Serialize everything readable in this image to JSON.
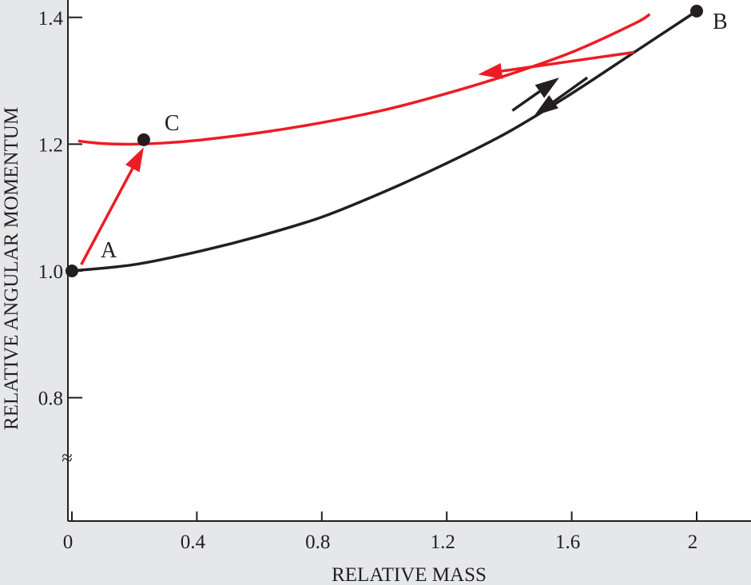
{
  "chart_data": {
    "type": "line",
    "title": "",
    "xlabel": "RELATIVE MASS",
    "ylabel": "RELATIVE ANGULAR MOMENTUM",
    "xlim": [
      0,
      2.16
    ],
    "ylim": [
      0.6,
      1.44
    ],
    "x_ticks": [
      0,
      0.4,
      0.8,
      1.2,
      1.6,
      2
    ],
    "x_tick_labels": [
      "0",
      "0.4",
      "0.8",
      "1.2",
      "1.6",
      "2"
    ],
    "y_ticks": [
      0.8,
      1.0,
      1.2,
      1.4
    ],
    "y_tick_labels": [
      "0.8",
      "1.0",
      "1.2",
      "1.4"
    ],
    "axis_break": "≈",
    "grid": false,
    "colors": {
      "black_curve": "#231f20",
      "red_curve": "#ed1c24",
      "axis": "#231f20",
      "plot_background": "#ffffff",
      "frame_background": "#e6e7e8"
    },
    "series": [
      {
        "color": "#231f20",
        "x": [
          0,
          0.2,
          0.4,
          0.6,
          0.8,
          1.0,
          1.2,
          1.4,
          1.6,
          1.8,
          2.0
        ],
        "y": [
          1.0,
          1.01,
          1.03,
          1.055,
          1.085,
          1.125,
          1.17,
          1.22,
          1.28,
          1.345,
          1.41
        ]
      },
      {
        "color": "#ed1c24",
        "x": [
          0.02,
          0.1,
          0.2,
          0.3,
          0.4,
          0.6,
          0.8,
          1.0,
          1.2,
          1.4,
          1.6,
          1.8,
          1.85
        ],
        "y": [
          1.205,
          1.201,
          1.2,
          1.202,
          1.206,
          1.218,
          1.234,
          1.254,
          1.28,
          1.31,
          1.345,
          1.39,
          1.405
        ]
      }
    ],
    "points": [
      {
        "label": "A",
        "x": 0,
        "y": 1.0
      },
      {
        "label": "B",
        "x": 2.0,
        "y": 1.41
      },
      {
        "label": "C",
        "x": 0.23,
        "y": 1.207
      }
    ],
    "arrows": [
      {
        "color": "#ed1c24",
        "from": [
          0.03,
          1.01
        ],
        "to": [
          0.23,
          1.195
        ]
      },
      {
        "color": "#ed1c24",
        "from": [
          1.8,
          1.345
        ],
        "to": [
          1.3,
          1.31
        ]
      },
      {
        "color": "#231f20",
        "from": [
          1.41,
          1.253
        ],
        "to": [
          1.56,
          1.305
        ]
      },
      {
        "color": "#231f20",
        "from": [
          1.65,
          1.305
        ],
        "to": [
          1.48,
          1.245
        ]
      }
    ]
  }
}
